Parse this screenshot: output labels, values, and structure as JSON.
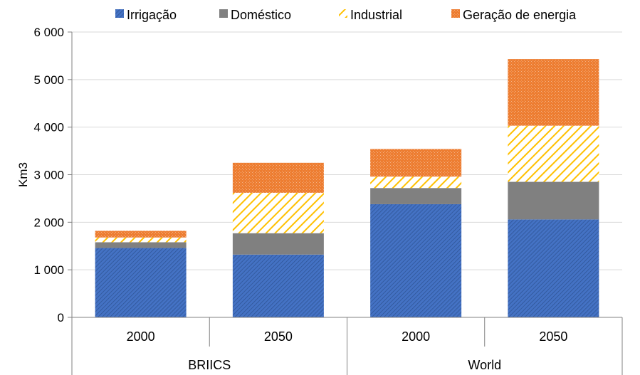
{
  "chart_data": {
    "type": "bar",
    "stacked": true,
    "ylabel": "Km3",
    "ylim": [
      0,
      6000
    ],
    "ytick_step": 1000,
    "yticks": [
      "0",
      "1 000",
      "2 000",
      "3 000",
      "4 000",
      "5 000",
      "6 000"
    ],
    "legend_position": "top",
    "groups": [
      {
        "label": "BRIICS",
        "categories": [
          "2000",
          "2050"
        ]
      },
      {
        "label": "World",
        "categories": [
          "2000",
          "2050"
        ]
      }
    ],
    "categories": [
      "2000",
      "2050",
      "2000",
      "2050"
    ],
    "series": [
      {
        "name": "Irrigação",
        "color": "#4472C4",
        "pattern": "dense-diagonal",
        "values": [
          1460,
          1320,
          2380,
          2060
        ]
      },
      {
        "name": "Doméstico",
        "color": "#808080",
        "pattern": "solid",
        "values": [
          120,
          450,
          340,
          790
        ]
      },
      {
        "name": "Industrial",
        "color": "#FFC000",
        "pattern": "wide-diagonal",
        "values": [
          100,
          850,
          240,
          1180
        ]
      },
      {
        "name": "Geração de energia",
        "color": "#ED7D31",
        "pattern": "dots",
        "values": [
          140,
          630,
          580,
          1400
        ]
      }
    ],
    "grid": true
  }
}
